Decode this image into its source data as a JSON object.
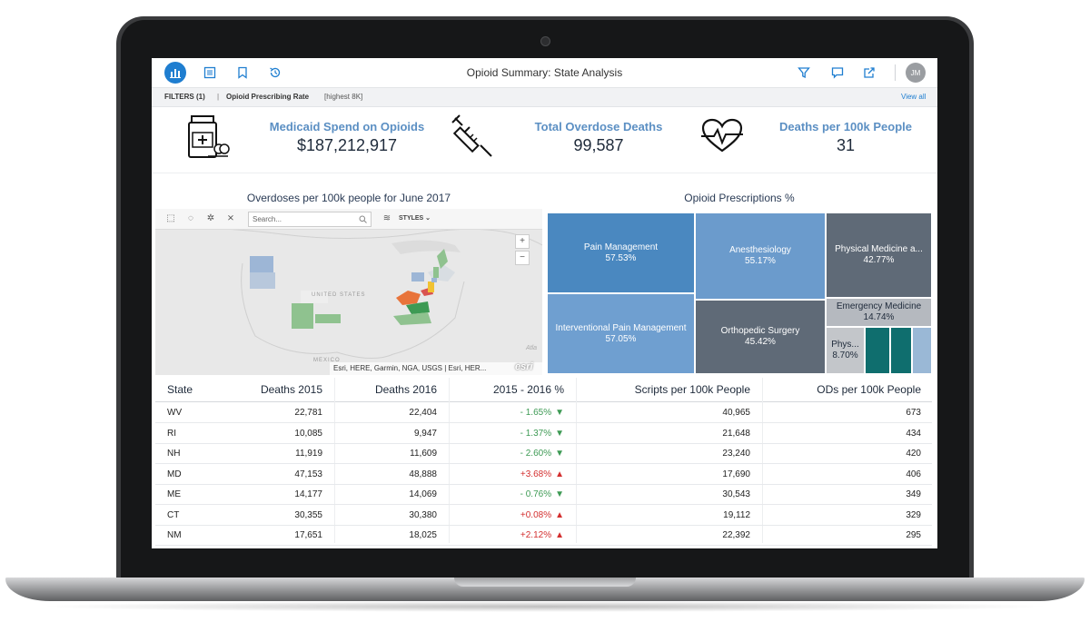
{
  "app": {
    "title": "Opioid Summary: State Analysis",
    "avatar_initials": "JM",
    "accent_color": "#1f7ed0",
    "left_icons": [
      "dashboard-icon",
      "list-icon",
      "bookmark-icon",
      "history-icon"
    ],
    "right_icons": [
      "filter-icon",
      "comment-icon",
      "share-icon"
    ]
  },
  "filters": {
    "label": "FILTERS (1)",
    "separator": "|",
    "name": "Opioid Prescribing Rate",
    "detail": "[highest 8K]",
    "view_all": "View all"
  },
  "kpis": [
    {
      "label": "Medicaid Spend on Opioids",
      "value": "$187,212,917",
      "icon": "pill-bottle-icon"
    },
    {
      "label": "Total Overdose Deaths",
      "value": "99,587",
      "icon": "syringe-icon"
    },
    {
      "label": "Deaths per 100k People",
      "value": "31",
      "icon": "heartbeat-icon"
    }
  ],
  "map": {
    "title": "Overdoses per 100k people for June 2017",
    "search_placeholder": "Search...",
    "styles_label": "STYLES",
    "zoom_in": "+",
    "zoom_out": "−",
    "country_label": "UNITED STATES",
    "mexico_label": "MEXICO",
    "ocean_label": "Atla",
    "attribution": "Esri, HERE, Garmin, NGA, USGS | Esri, HER...",
    "brand": "esri",
    "land_color": "#e6e6e6",
    "highlight_colors": {
      "green": "#8fc28f",
      "blue": "#9db6d6",
      "orange": "#e8743b",
      "red": "#d9534f",
      "yellow": "#f1c232"
    }
  },
  "treemap": {
    "title": "Opioid Prescriptions %",
    "cells": [
      {
        "label": "Pain Management",
        "value": "57.53%",
        "color": "#4a88c0"
      },
      {
        "label": "Interventional Pain Management",
        "value": "57.05%",
        "color": "#6f9fd0"
      },
      {
        "label": "Anesthesiology",
        "value": "55.17%",
        "color": "#6b9bcc"
      },
      {
        "label": "Orthopedic Surgery",
        "value": "45.42%",
        "color": "#5f6a77"
      },
      {
        "label": "Physical Medicine a...",
        "value": "42.77%",
        "color": "#5f6a77"
      },
      {
        "label": "Emergency Medicine",
        "value": "14.74%",
        "color": "#b5b9bf"
      },
      {
        "label": "Phys...",
        "value": "8.70%",
        "color": "#c3c6ca"
      },
      {
        "label": "",
        "value": "",
        "color": "#0f6e6e"
      },
      {
        "label": "",
        "value": "",
        "color": "#0f6e6e"
      },
      {
        "label": "",
        "value": "",
        "color": "#9ab8d6"
      }
    ]
  },
  "table": {
    "headers": [
      "State",
      "Deaths 2015",
      "Deaths 2016",
      "2015 - 2016 %",
      "Scripts per 100k People",
      "ODs per 100k People"
    ],
    "rows": [
      {
        "state": "WV",
        "d2015": "22,781",
        "d2016": "22,404",
        "change": "- 1.65%",
        "dir": "down",
        "scripts": "40,965",
        "ods": "673"
      },
      {
        "state": "RI",
        "d2015": "10,085",
        "d2016": "9,947",
        "change": "- 1.37%",
        "dir": "down",
        "scripts": "21,648",
        "ods": "434"
      },
      {
        "state": "NH",
        "d2015": "11,919",
        "d2016": "11,609",
        "change": "- 2.60%",
        "dir": "down",
        "scripts": "23,240",
        "ods": "420"
      },
      {
        "state": "MD",
        "d2015": "47,153",
        "d2016": "48,888",
        "change": "+3.68%",
        "dir": "up",
        "scripts": "17,690",
        "ods": "406"
      },
      {
        "state": "ME",
        "d2015": "14,177",
        "d2016": "14,069",
        "change": "- 0.76%",
        "dir": "down",
        "scripts": "30,543",
        "ods": "349"
      },
      {
        "state": "CT",
        "d2015": "30,355",
        "d2016": "30,380",
        "change": "+0.08%",
        "dir": "up",
        "scripts": "19,112",
        "ods": "329"
      },
      {
        "state": "NM",
        "d2015": "17,651",
        "d2016": "18,025",
        "change": "+2.12%",
        "dir": "up",
        "scripts": "22,392",
        "ods": "295"
      }
    ],
    "arrow_up": "▲",
    "arrow_down": "▼",
    "up_color": "#d32f2f",
    "down_color": "#3d9a54"
  }
}
